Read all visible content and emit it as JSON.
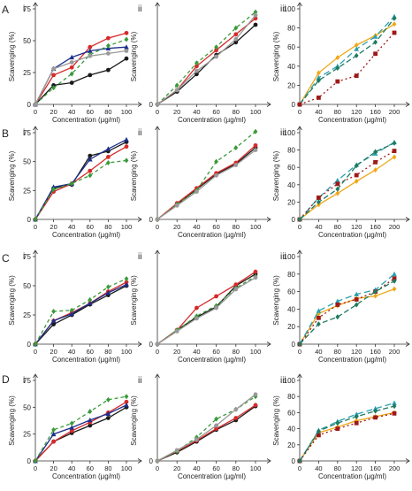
{
  "row_labels": [
    "A",
    "B",
    "C",
    "D"
  ],
  "panel_labels": [
    "i",
    "ii",
    "iii"
  ],
  "ylabel": "Scavenging (%)",
  "xlabel": "Concentration (µg/ml)",
  "colors": {
    "black": "#1a1a1a",
    "red": "#d62a2a",
    "navy": "#1c2f8a",
    "green": "#3a9a3a",
    "grey": "#9a9a9a",
    "orange": "#f0a818",
    "teal": "#2aa0b0",
    "darkred": "#a01818",
    "darkgreen": "#1f7a60",
    "axis": "#333333"
  },
  "chart_data": [
    {
      "type": "line",
      "row": "A",
      "panel": "i",
      "x": [
        0,
        20,
        40,
        60,
        80,
        100
      ],
      "ylim": [
        0,
        75
      ],
      "yticks": [
        0,
        25,
        50,
        75
      ],
      "xlim": [
        0,
        100
      ],
      "xticks": [
        0,
        20,
        40,
        60,
        80,
        100
      ],
      "series": [
        {
          "style": "black",
          "values": [
            0,
            15,
            17,
            23,
            27,
            36
          ]
        },
        {
          "style": "red",
          "values": [
            0,
            23,
            29,
            45,
            52,
            56
          ]
        },
        {
          "style": "navy",
          "values": [
            0,
            28,
            37,
            42,
            44,
            45
          ]
        },
        {
          "style": "green",
          "values": [
            0,
            13,
            24,
            39,
            46,
            51
          ]
        },
        {
          "style": "grey",
          "values": [
            0,
            28,
            33,
            38,
            40,
            42
          ]
        }
      ]
    },
    {
      "type": "line",
      "row": "A",
      "panel": "ii",
      "x": [
        0,
        20,
        40,
        60,
        80,
        100
      ],
      "ylim": [
        0,
        60
      ],
      "yticks": [],
      "xlim": [
        0,
        100
      ],
      "xticks": [
        0,
        20,
        40,
        60,
        80,
        100
      ],
      "series": [
        {
          "style": "black",
          "values": [
            0,
            8,
            19,
            31,
            39,
            50
          ]
        },
        {
          "style": "red",
          "values": [
            0,
            9,
            24,
            34,
            44,
            54
          ]
        },
        {
          "style": "green",
          "values": [
            0,
            12,
            26,
            36,
            48,
            58
          ]
        },
        {
          "style": "grey",
          "values": [
            0,
            9,
            21,
            30,
            41,
            56
          ]
        }
      ]
    },
    {
      "type": "line",
      "row": "A",
      "panel": "iii",
      "x": [
        0,
        40,
        80,
        120,
        160,
        200
      ],
      "ylim": [
        0,
        100
      ],
      "yticks": [
        0,
        20,
        40,
        60,
        80,
        100
      ],
      "xlim": [
        0,
        200
      ],
      "xticks": [
        0,
        40,
        80,
        120,
        160,
        200
      ],
      "series": [
        {
          "style": "orange",
          "values": [
            0,
            33,
            49,
            62,
            72,
            84
          ]
        },
        {
          "style": "teal",
          "values": [
            0,
            28,
            40,
            58,
            71,
            92
          ]
        },
        {
          "style": "darkgreen",
          "values": [
            0,
            25,
            38,
            51,
            65,
            90
          ]
        },
        {
          "style": "darkred",
          "values": [
            0,
            7,
            24,
            30,
            53,
            75
          ]
        }
      ]
    },
    {
      "type": "line",
      "row": "B",
      "panel": "i",
      "x": [
        0,
        20,
        40,
        60,
        80,
        100
      ],
      "ylim": [
        0,
        75
      ],
      "yticks": [
        0,
        25,
        50,
        75
      ],
      "xlim": [
        0,
        100
      ],
      "xticks": [
        0,
        20,
        40,
        60,
        80,
        100
      ],
      "series": [
        {
          "style": "black",
          "values": [
            0,
            27,
            30,
            55,
            59,
            67
          ]
        },
        {
          "style": "red",
          "values": [
            0,
            24,
            31,
            42,
            54,
            63
          ]
        },
        {
          "style": "navy",
          "values": [
            0,
            28,
            31,
            52,
            61,
            69
          ]
        },
        {
          "style": "green",
          "values": [
            0,
            26,
            31,
            38,
            49,
            51
          ]
        }
      ]
    },
    {
      "type": "line",
      "row": "B",
      "panel": "ii",
      "x": [
        0,
        20,
        40,
        60,
        80,
        100
      ],
      "ylim": [
        0,
        75
      ],
      "yticks": [],
      "xlim": [
        0,
        100
      ],
      "xticks": [
        0,
        20,
        40,
        60,
        80,
        100
      ],
      "series": [
        {
          "style": "black",
          "values": [
            0,
            13,
            26,
            39,
            48,
            62
          ]
        },
        {
          "style": "red",
          "values": [
            0,
            14,
            27,
            40,
            49,
            64
          ]
        },
        {
          "style": "green",
          "values": [
            0,
            13,
            25,
            50,
            62,
            76
          ]
        },
        {
          "style": "grey",
          "values": [
            0,
            12,
            24,
            38,
            47,
            60
          ]
        }
      ]
    },
    {
      "type": "line",
      "row": "B",
      "panel": "iii",
      "x": [
        0,
        40,
        80,
        120,
        160,
        200
      ],
      "ylim": [
        0,
        100
      ],
      "yticks": [
        0,
        20,
        40,
        60,
        80,
        100
      ],
      "xlim": [
        0,
        200
      ],
      "xticks": [
        0,
        40,
        80,
        120,
        160,
        200
      ],
      "series": [
        {
          "style": "teal",
          "values": [
            0,
            25,
            45,
            63,
            76,
            89
          ]
        },
        {
          "style": "darkred",
          "values": [
            0,
            25,
            41,
            51,
            66,
            79
          ]
        },
        {
          "style": "orange",
          "values": [
            0,
            17,
            30,
            44,
            57,
            72
          ]
        },
        {
          "style": "darkgreen",
          "values": [
            0,
            20,
            35,
            62,
            78,
            88
          ]
        }
      ]
    },
    {
      "type": "line",
      "row": "C",
      "panel": "i",
      "x": [
        0,
        20,
        40,
        60,
        80,
        100
      ],
      "ylim": [
        0,
        75
      ],
      "yticks": [
        0,
        25,
        50,
        75
      ],
      "xlim": [
        0,
        100
      ],
      "xticks": [
        0,
        20,
        40,
        60,
        80,
        100
      ],
      "series": [
        {
          "style": "black",
          "values": [
            0,
            17,
            25,
            34,
            42,
            50
          ]
        },
        {
          "style": "red",
          "values": [
            0,
            20,
            27,
            35,
            45,
            53
          ]
        },
        {
          "style": "navy",
          "values": [
            0,
            20,
            26,
            35,
            44,
            51
          ]
        },
        {
          "style": "green",
          "values": [
            0,
            28,
            29,
            38,
            49,
            56
          ]
        }
      ]
    },
    {
      "type": "line",
      "row": "C",
      "panel": "ii",
      "x": [
        0,
        20,
        40,
        60,
        80,
        100
      ],
      "ylim": [
        0,
        75
      ],
      "yticks": [],
      "xlim": [
        0,
        100
      ],
      "xticks": [
        0,
        20,
        40,
        60,
        80,
        100
      ],
      "series": [
        {
          "style": "black",
          "values": [
            0,
            12,
            23,
            32,
            50,
            60
          ]
        },
        {
          "style": "red",
          "values": [
            0,
            12,
            31,
            41,
            51,
            62
          ]
        },
        {
          "style": "green",
          "values": [
            0,
            12,
            24,
            33,
            48,
            58
          ]
        },
        {
          "style": "grey",
          "values": [
            0,
            11,
            22,
            31,
            47,
            57
          ]
        }
      ]
    },
    {
      "type": "line",
      "row": "C",
      "panel": "iii",
      "x": [
        0,
        40,
        80,
        120,
        160,
        200
      ],
      "ylim": [
        0,
        100
      ],
      "yticks": [
        0,
        20,
        40,
        60,
        80,
        100
      ],
      "xlim": [
        0,
        200
      ],
      "xticks": [
        0,
        40,
        80,
        120,
        160,
        200
      ],
      "series": [
        {
          "style": "orange",
          "values": [
            0,
            35,
            44,
            52,
            55,
            63
          ]
        },
        {
          "style": "teal",
          "values": [
            0,
            38,
            49,
            57,
            62,
            80
          ]
        },
        {
          "style": "darkred",
          "values": [
            0,
            30,
            45,
            51,
            60,
            75
          ]
        },
        {
          "style": "darkgreen",
          "values": [
            0,
            23,
            31,
            45,
            60,
            72
          ]
        }
      ]
    },
    {
      "type": "line",
      "row": "D",
      "panel": "i",
      "x": [
        0,
        20,
        40,
        60,
        80,
        100
      ],
      "ylim": [
        0,
        75
      ],
      "yticks": [
        0,
        25,
        50,
        75
      ],
      "xlim": [
        0,
        100
      ],
      "xticks": [
        0,
        20,
        40,
        60,
        80,
        100
      ],
      "series": [
        {
          "style": "black",
          "values": [
            0,
            18,
            26,
            33,
            40,
            50
          ]
        },
        {
          "style": "red",
          "values": [
            0,
            18,
            28,
            36,
            45,
            55
          ]
        },
        {
          "style": "navy",
          "values": [
            0,
            25,
            31,
            38,
            44,
            52
          ]
        },
        {
          "style": "green",
          "values": [
            0,
            29,
            35,
            46,
            57,
            60
          ]
        }
      ]
    },
    {
      "type": "line",
      "row": "D",
      "panel": "ii",
      "x": [
        0,
        20,
        40,
        60,
        80,
        100
      ],
      "ylim": [
        0,
        75
      ],
      "yticks": [],
      "xlim": [
        0,
        100
      ],
      "xticks": [
        0,
        20,
        40,
        60,
        80,
        100
      ],
      "series": [
        {
          "style": "black",
          "values": [
            0,
            8,
            18,
            29,
            38,
            51
          ]
        },
        {
          "style": "red",
          "values": [
            0,
            9,
            19,
            30,
            40,
            52
          ]
        },
        {
          "style": "green",
          "values": [
            0,
            9,
            22,
            39,
            48,
            60
          ]
        },
        {
          "style": "grey",
          "values": [
            0,
            10,
            20,
            33,
            48,
            62
          ]
        }
      ]
    },
    {
      "type": "line",
      "row": "D",
      "panel": "iii",
      "x": [
        0,
        40,
        80,
        120,
        160,
        200
      ],
      "ylim": [
        0,
        100
      ],
      "yticks": [
        0,
        20,
        40,
        60,
        80,
        100
      ],
      "xlim": [
        0,
        200
      ],
      "xticks": [
        0,
        40,
        80,
        120,
        160,
        200
      ],
      "series": [
        {
          "style": "orange",
          "values": [
            0,
            35,
            42,
            50,
            55,
            60
          ]
        },
        {
          "style": "teal",
          "values": [
            0,
            38,
            49,
            58,
            65,
            72
          ]
        },
        {
          "style": "darkred",
          "values": [
            0,
            32,
            40,
            47,
            54,
            59
          ]
        },
        {
          "style": "darkgreen",
          "values": [
            0,
            37,
            47,
            55,
            62,
            68
          ]
        }
      ]
    }
  ]
}
